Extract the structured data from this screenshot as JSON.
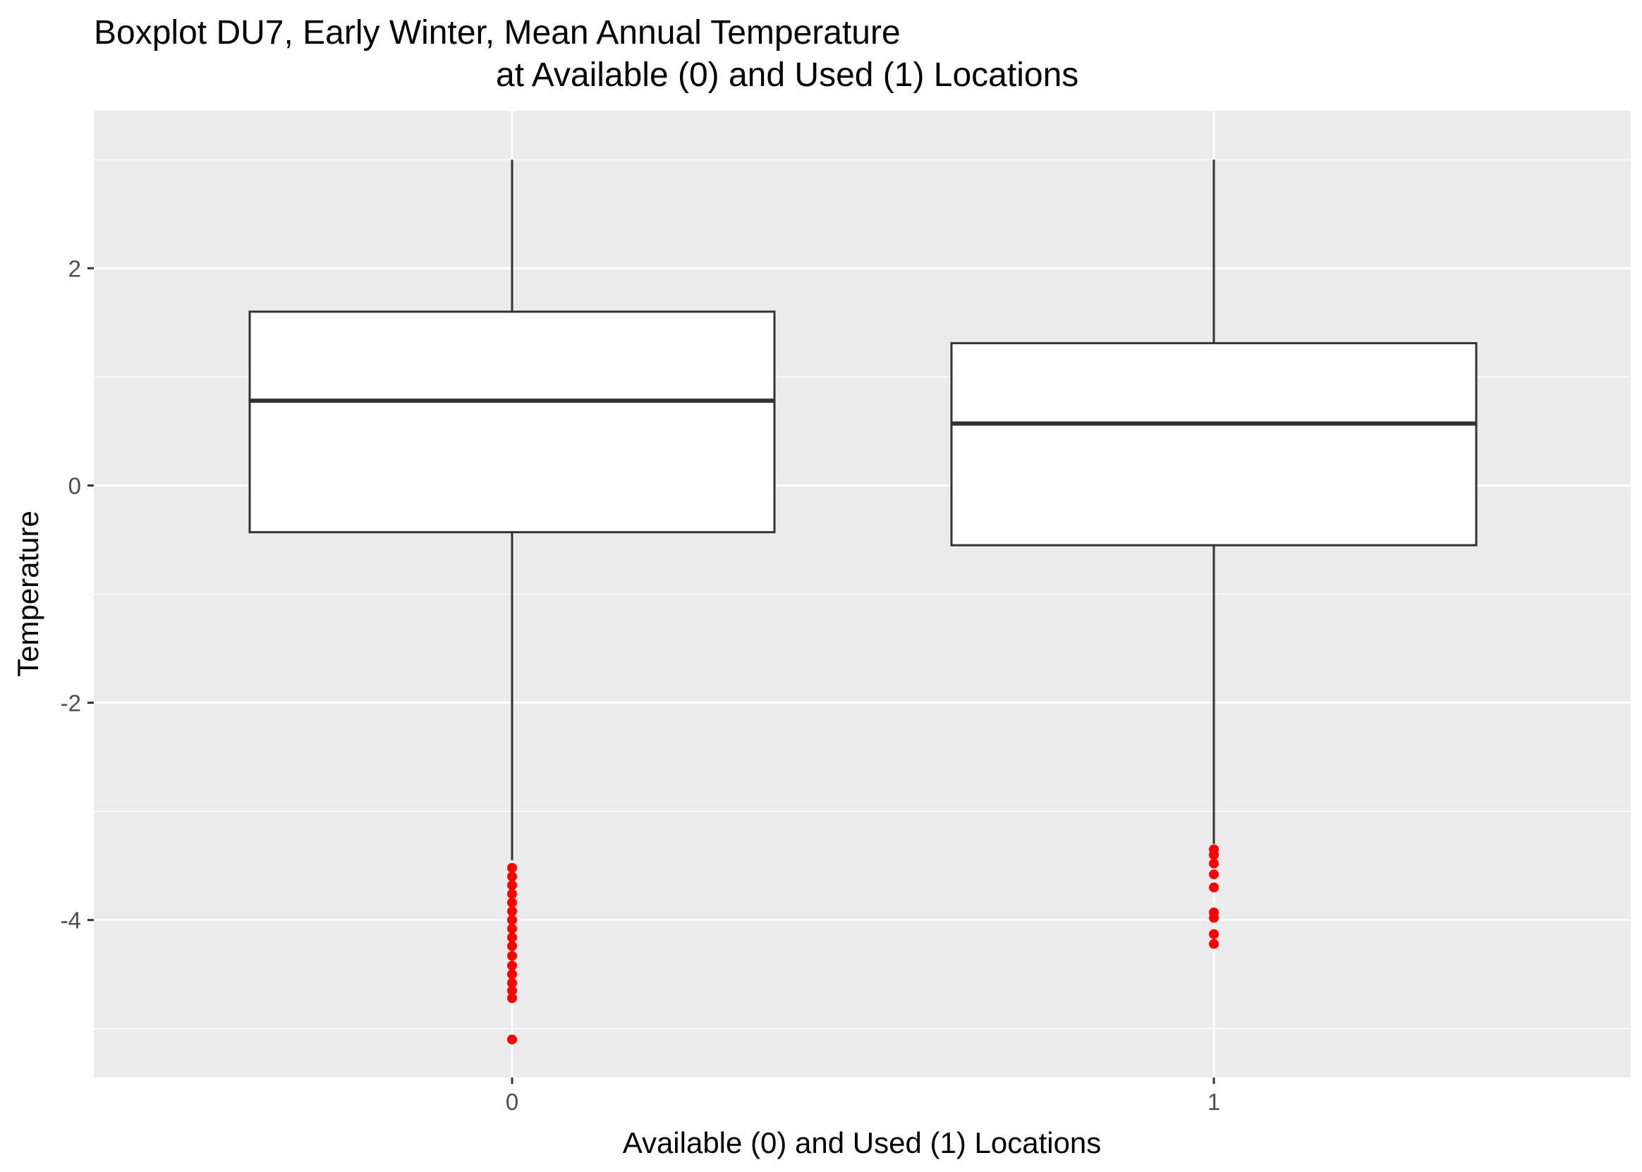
{
  "chart_data": {
    "type": "boxplot",
    "title_line1": "Boxplot DU7, Early Winter, Mean Annual Temperature",
    "title_line2": "at Available (0) and Used (1) Locations",
    "xlabel": "Available (0) and Used (1) Locations",
    "ylabel": "Temperature",
    "ylim": [
      -5.45,
      3.45
    ],
    "y_ticks": [
      2,
      0,
      -2,
      -4
    ],
    "y_tick_labels": [
      "2",
      "0",
      "-2",
      "-4"
    ],
    "y_minor_ticks": [
      3,
      1,
      -1,
      -3,
      -5
    ],
    "categories": [
      "0",
      "1"
    ],
    "boxes": [
      {
        "category": "0",
        "whisker_low": -3.45,
        "q1": -0.43,
        "median": 0.78,
        "q3": 1.6,
        "whisker_high": 3.0,
        "outliers": [
          -3.52,
          -3.6,
          -3.68,
          -3.76,
          -3.84,
          -3.92,
          -4.0,
          -4.08,
          -4.16,
          -4.24,
          -4.33,
          -4.42,
          -4.5,
          -4.58,
          -4.65,
          -4.72,
          -5.1
        ]
      },
      {
        "category": "1",
        "whisker_low": -3.3,
        "q1": -0.55,
        "median": 0.57,
        "q3": 1.31,
        "whisker_high": 3.0,
        "outliers": [
          -3.35,
          -3.4,
          -3.48,
          -3.58,
          -3.7,
          -3.93,
          -3.98,
          -4.13,
          -4.22
        ]
      }
    ],
    "colors": {
      "panel": "#ebebeb",
      "grid": "#ffffff",
      "box_fill": "#ffffff",
      "box_line": "#333333",
      "outlier": "#ff0000"
    }
  }
}
